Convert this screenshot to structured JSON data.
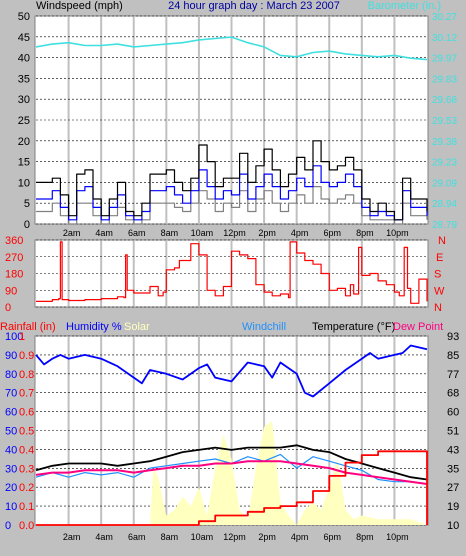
{
  "header": {
    "left_title": "Windspeed (mph)",
    "center_title": "24 hour graph day : March 23 2007",
    "right_title": "Barometer (in.)"
  },
  "colors": {
    "background": "#c0c0c0",
    "plot_bg": "#ffffff",
    "grid_vertical": "#c0c0c0",
    "grid_horizontal": "#000000",
    "barometer": "#40e0e0",
    "wind_gust": "#000000",
    "wind_avg": "#0000ff",
    "wind_low": "#808080",
    "direction": "#ff0000",
    "humidity": "#0000ff",
    "solar": "#ffffc0",
    "windchill": "#1e90ff",
    "temperature": "#000000",
    "dew_point": "#ff0080",
    "rainfall": "#ff0000",
    "left_axis_blue": "#0000ff",
    "left_axis_red": "#ff0000",
    "title_blue": "#0000a0"
  },
  "x_labels": [
    "2am",
    "4am",
    "6am",
    "8am",
    "10am",
    "12pm",
    "2pm",
    "4pm",
    "6pm",
    "8pm",
    "10pm"
  ],
  "chart_data": [
    {
      "type": "line",
      "title": "24 hour graph day : March 23 2007",
      "x_range_hours": [
        0,
        24
      ],
      "y_left": {
        "label": "Windspeed (mph)",
        "ticks": [
          0,
          5,
          10,
          15,
          20,
          25,
          30,
          35,
          40,
          45,
          50
        ],
        "range": [
          0,
          50
        ]
      },
      "y_right": {
        "label": "Barometer (in.)",
        "ticks": [
          "28.79",
          "28.94",
          "29.09",
          "29.23",
          "29.38",
          "29.53",
          "29.68",
          "29.83",
          "29.97",
          "30.12",
          "30.27"
        ],
        "range": [
          28.79,
          30.27
        ]
      },
      "grid": true,
      "series": [
        {
          "name": "Barometer (in.)",
          "axis": "right",
          "color": "#40e0e0",
          "x": [
            0,
            1,
            2,
            3,
            4,
            5,
            6,
            7,
            8,
            9,
            10,
            11,
            12,
            13,
            14,
            15,
            16,
            17,
            18,
            19,
            20,
            21,
            22,
            23,
            24
          ],
          "values": [
            30.05,
            30.07,
            30.08,
            30.06,
            30.06,
            30.07,
            30.05,
            30.06,
            30.07,
            30.08,
            30.1,
            30.11,
            30.12,
            30.08,
            30.05,
            29.99,
            29.98,
            30.01,
            30.02,
            30.0,
            29.99,
            29.98,
            29.99,
            29.97,
            29.96
          ]
        },
        {
          "color": "#000000",
          "x": [
            0,
            1,
            1.5,
            2,
            2.5,
            3,
            3.5,
            4,
            4.5,
            5,
            5.5,
            6,
            6.5,
            7,
            7.5,
            8,
            8.5,
            9,
            9.5,
            10,
            10.5,
            11,
            11.5,
            12,
            12.5,
            13,
            13.5,
            14,
            14.5,
            15,
            15.5,
            16,
            16.5,
            17,
            17.5,
            18,
            18.5,
            19,
            19.5,
            20,
            20.5,
            21,
            21.5,
            22,
            22.5,
            23,
            24
          ],
          "values": [
            10,
            11,
            7,
            2,
            12,
            13,
            6,
            2,
            6,
            10,
            3,
            2,
            5,
            12,
            12,
            13,
            10,
            8,
            11,
            19,
            15,
            9,
            11,
            11,
            17,
            10,
            14,
            18,
            13,
            9,
            12,
            16,
            13,
            20,
            15,
            13,
            14,
            16,
            13,
            6,
            3,
            5,
            3,
            1,
            11,
            6,
            3
          ]
        },
        {
          "color": "#0000ff",
          "x": [
            0,
            1,
            1.5,
            2,
            2.5,
            3,
            3.5,
            4,
            4.5,
            5,
            5.5,
            6,
            6.5,
            7,
            7.5,
            8,
            8.5,
            9,
            9.5,
            10,
            10.5,
            11,
            11.5,
            12,
            12.5,
            13,
            13.5,
            14,
            14.5,
            15,
            15.5,
            16,
            16.5,
            17,
            17.5,
            18,
            18.5,
            19,
            19.5,
            20,
            20.5,
            21,
            21.5,
            22,
            22.5,
            23,
            24
          ],
          "values": [
            6,
            8,
            4,
            1,
            8,
            9,
            4,
            1,
            4,
            7,
            2,
            1,
            3,
            8,
            8,
            9,
            7,
            5,
            8,
            13,
            9,
            6,
            8,
            7,
            12,
            6,
            9,
            12,
            9,
            6,
            8,
            11,
            9,
            14,
            10,
            9,
            10,
            12,
            9,
            4,
            2,
            3,
            2,
            1,
            8,
            4,
            2
          ]
        },
        {
          "color": "#808080",
          "x": [
            0,
            1,
            1.5,
            2,
            2.5,
            3,
            3.5,
            4,
            4.5,
            5,
            5.5,
            6,
            6.5,
            7,
            7.5,
            8,
            8.5,
            9,
            9.5,
            10,
            10.5,
            11,
            11.5,
            12,
            12.5,
            13,
            13.5,
            14,
            14.5,
            15,
            15.5,
            16,
            16.5,
            17,
            17.5,
            18,
            18.5,
            19,
            19.5,
            20,
            20.5,
            21,
            21.5,
            22,
            22.5,
            23,
            24
          ],
          "values": [
            3,
            5,
            2,
            0,
            5,
            5,
            2,
            0,
            2,
            4,
            1,
            0,
            1,
            5,
            5,
            5,
            4,
            3,
            5,
            8,
            6,
            3,
            5,
            4,
            8,
            3,
            6,
            8,
            5,
            3,
            5,
            7,
            5,
            9,
            6,
            5,
            6,
            7,
            5,
            2,
            1,
            1,
            1,
            0,
            5,
            2,
            1
          ]
        }
      ]
    },
    {
      "type": "line",
      "y_left": {
        "ticks": [
          0,
          90,
          180,
          270,
          360
        ],
        "range": [
          0,
          360
        ]
      },
      "y_right": {
        "ticks": [
          "N",
          "W",
          "S",
          "E",
          "N"
        ]
      },
      "grid": true,
      "series": [
        {
          "color": "#ff0000",
          "x": [
            0,
            1,
            1.4,
            1.5,
            1.6,
            2,
            3,
            4,
            5,
            5.4,
            5.5,
            5.6,
            6,
            7,
            7.5,
            7.8,
            8,
            8.5,
            8.8,
            9.5,
            10,
            10.5,
            11,
            11.5,
            12,
            12.5,
            13,
            13.5,
            14,
            14.5,
            15,
            15.5,
            15.6,
            16,
            16.5,
            17,
            17.5,
            18,
            18.5,
            19,
            19.3,
            19.5,
            19.8,
            20,
            20.5,
            21,
            21.5,
            22,
            22.3,
            22.6,
            22.8,
            23,
            23.5,
            24
          ],
          "values": [
            30,
            40,
            45,
            350,
            40,
            35,
            40,
            45,
            55,
            50,
            280,
            90,
            75,
            110,
            60,
            80,
            200,
            210,
            250,
            340,
            280,
            90,
            60,
            110,
            300,
            280,
            260,
            120,
            80,
            60,
            70,
            50,
            350,
            290,
            250,
            230,
            180,
            90,
            100,
            60,
            120,
            70,
            320,
            170,
            180,
            140,
            120,
            80,
            60,
            320,
            100,
            20,
            150,
            30
          ]
        }
      ]
    },
    {
      "type": "line",
      "legend": [
        "Rainfall (in)",
        "Humidity %",
        "Solar",
        "Windchill",
        "Temperature (°F)",
        "Dew Point"
      ],
      "y_left_humidity": {
        "ticks": [
          0,
          10,
          20,
          30,
          40,
          50,
          60,
          70,
          80,
          90,
          100
        ],
        "range": [
          0,
          100
        ]
      },
      "y_left_rain": {
        "ticks": [
          "0.0",
          "0.1",
          "0.2",
          "0.3",
          "0.4",
          "0.5",
          "0.6",
          "0.7",
          "0.8",
          "0.9",
          "1"
        ]
      },
      "y_right": {
        "label": "Temperature (°F)",
        "ticks": [
          10,
          19,
          27,
          35,
          43,
          51,
          60,
          68,
          77,
          85,
          93
        ],
        "range": [
          10,
          93
        ]
      },
      "grid": true,
      "series": [
        {
          "name": "Humidity %",
          "color": "#0000ff",
          "x": [
            0,
            0.5,
            1,
            1.5,
            2,
            3,
            4,
            5,
            6,
            6.5,
            7,
            8,
            9,
            10,
            10.5,
            11,
            12,
            13,
            14,
            14.5,
            15,
            16,
            16.5,
            17,
            18,
            19,
            20,
            20.5,
            21,
            22,
            22.5,
            23,
            24
          ],
          "values": [
            90,
            85,
            88,
            90,
            88,
            90,
            88,
            84,
            78,
            75,
            82,
            80,
            77,
            83,
            85,
            78,
            76,
            86,
            84,
            78,
            86,
            80,
            70,
            68,
            75,
            82,
            88,
            91,
            88,
            90,
            91,
            95,
            93
          ]
        },
        {
          "name": "Temperature (°F)",
          "color": "#000000",
          "x": [
            0,
            1,
            2,
            3,
            4,
            5,
            6,
            7,
            8,
            9,
            10,
            11,
            12,
            13,
            14,
            15,
            16,
            17,
            18,
            19,
            20,
            21,
            22,
            23,
            24
          ],
          "values": [
            34,
            36,
            37,
            37,
            37,
            36,
            37,
            38,
            40,
            42,
            43,
            44,
            43,
            44,
            44,
            44,
            45,
            43,
            42,
            39,
            37,
            35,
            33,
            31,
            30
          ]
        },
        {
          "name": "Windchill",
          "color": "#1e90ff",
          "x": [
            0,
            1,
            2,
            3,
            4,
            5,
            6,
            7,
            8,
            9,
            10,
            11,
            12,
            13,
            14,
            15,
            16,
            17,
            18,
            19,
            20,
            21,
            22,
            23,
            24
          ],
          "values": [
            31,
            33,
            31,
            33,
            32,
            33,
            31,
            35,
            36,
            37,
            38,
            39,
            37,
            40,
            38,
            41,
            35,
            40,
            38,
            36,
            34,
            30,
            29,
            29,
            28
          ]
        },
        {
          "name": "Dew Point",
          "color": "#ff0080",
          "x": [
            0,
            1,
            2,
            3,
            4,
            5,
            6,
            7,
            8,
            9,
            10,
            11,
            12,
            13,
            14,
            15,
            16,
            17,
            18,
            19,
            20,
            21,
            22,
            23,
            24
          ],
          "values": [
            32,
            33,
            33,
            34,
            34,
            34,
            33,
            34,
            35,
            36,
            36,
            37,
            37,
            38,
            38,
            38,
            37,
            36,
            35,
            33,
            32,
            31,
            30,
            29,
            28
          ]
        },
        {
          "name": "Rainfall (in)",
          "color": "#ff0000",
          "x": [
            0,
            6,
            8,
            10,
            11,
            12,
            13,
            14,
            15,
            16,
            17,
            18,
            19,
            20,
            21,
            22,
            23,
            23.9,
            24
          ],
          "values": [
            0,
            0,
            0,
            0.02,
            0.05,
            0.05,
            0.07,
            0.09,
            0.1,
            0.12,
            0.18,
            0.26,
            0.33,
            0.37,
            0.39,
            0.39,
            0.39,
            0.39,
            0
          ]
        },
        {
          "name": "Solar",
          "color": "#ffffc0",
          "x": [
            0,
            6,
            7,
            7.2,
            7.5,
            8,
            8.5,
            9,
            9.5,
            10,
            10.5,
            11,
            11.5,
            12,
            12.5,
            13,
            13.5,
            14,
            14.5,
            15,
            15.5,
            16,
            16.5,
            17,
            17.5,
            18,
            18.5,
            19,
            19.5,
            20,
            21,
            22,
            23,
            24
          ],
          "values": [
            0,
            0,
            0,
            30,
            25,
            5,
            8,
            15,
            10,
            20,
            5,
            30,
            48,
            35,
            8,
            3,
            30,
            52,
            55,
            12,
            5,
            0,
            8,
            12,
            8,
            20,
            35,
            8,
            3,
            5,
            3,
            3,
            3,
            0
          ]
        }
      ]
    }
  ]
}
